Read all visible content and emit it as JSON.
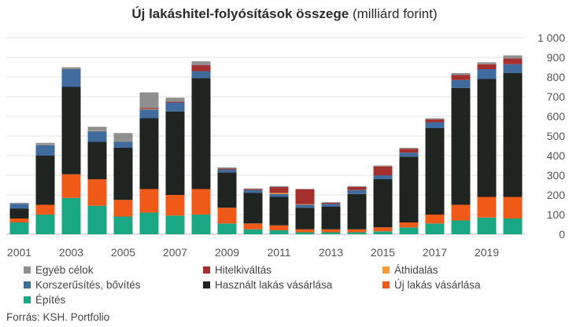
{
  "title_bold": "Új lakáshitel-folyósítások összege",
  "title_rest": "(milliárd forint)",
  "source": "Forrás: KSH. Portfolio",
  "chart_data": {
    "type": "bar",
    "stacked": true,
    "title": "Új lakáshitel-folyósítások összege (milliárd forint)",
    "categories": [
      "2001",
      "2002",
      "2003",
      "2004",
      "2005",
      "2006",
      "2007",
      "2008",
      "2009",
      "2010",
      "2011",
      "2012",
      "2013",
      "2014",
      "2015",
      "2016",
      "2017",
      "2018",
      "2019",
      "2020"
    ],
    "x_tick_labels": [
      "2001",
      "2003",
      "2005",
      "2007",
      "2009",
      "2011",
      "2013",
      "2015",
      "2017",
      "2019"
    ],
    "y_ticks": [
      0,
      100,
      200,
      300,
      400,
      500,
      600,
      700,
      800,
      900,
      1000
    ],
    "y_tick_labels": [
      "0",
      "100",
      "200",
      "300",
      "400",
      "500",
      "600",
      "700",
      "800",
      "900",
      "1 000"
    ],
    "ylim": [
      0,
      1000
    ],
    "grid": true,
    "legend_position": "bottom",
    "series": [
      {
        "name": "Építés",
        "color": "#1aa784",
        "values": [
          60,
          100,
          185,
          145,
          90,
          110,
          95,
          100,
          55,
          25,
          20,
          10,
          10,
          10,
          15,
          35,
          55,
          70,
          85,
          80
        ]
      },
      {
        "name": "Új lakás vásárlása",
        "color": "#f05a19",
        "values": [
          20,
          50,
          120,
          135,
          85,
          120,
          105,
          130,
          80,
          30,
          25,
          15,
          15,
          15,
          20,
          25,
          45,
          80,
          105,
          110
        ]
      },
      {
        "name": "Használt lakás vásárlása",
        "color": "#1f2421",
        "values": [
          50,
          250,
          445,
          190,
          265,
          360,
          425,
          565,
          180,
          155,
          145,
          110,
          115,
          180,
          245,
          335,
          440,
          595,
          600,
          630
        ]
      },
      {
        "name": "Korszerűsítés, bővítés",
        "color": "#3f6b9f",
        "values": [
          25,
          55,
          90,
          55,
          30,
          45,
          45,
          35,
          15,
          15,
          15,
          15,
          15,
          20,
          20,
          20,
          30,
          40,
          50,
          45
        ]
      },
      {
        "name": "Áthidalás",
        "color": "#f59a36",
        "values": [
          0,
          2,
          0,
          2,
          0,
          2,
          0,
          0,
          0,
          0,
          5,
          3,
          0,
          0,
          0,
          0,
          0,
          0,
          0,
          0
        ]
      },
      {
        "name": "Hitelkiváltás",
        "color": "#a3302c",
        "values": [
          0,
          0,
          0,
          0,
          0,
          5,
          5,
          30,
          5,
          5,
          30,
          75,
          5,
          15,
          45,
          20,
          15,
          25,
          25,
          30
        ]
      },
      {
        "name": "Egyéb célok",
        "color": "#8f8f8f",
        "values": [
          5,
          8,
          10,
          20,
          45,
          80,
          20,
          20,
          5,
          3,
          5,
          3,
          3,
          5,
          5,
          5,
          5,
          10,
          10,
          15
        ]
      }
    ]
  },
  "legend": [
    {
      "label": "Egyéb célok",
      "color": "#8f8f8f"
    },
    {
      "label": "Hitelkiváltás",
      "color": "#a3302c"
    },
    {
      "label": "Áthidalás",
      "color": "#f59a36"
    },
    {
      "label": "Korszerűsítés, bővítés",
      "color": "#3f6b9f"
    },
    {
      "label": "Használt lakás vásárlása",
      "color": "#1f2421"
    },
    {
      "label": "Új lakás vásárlása",
      "color": "#f05a19"
    },
    {
      "label": "Építés",
      "color": "#1aa784"
    }
  ]
}
